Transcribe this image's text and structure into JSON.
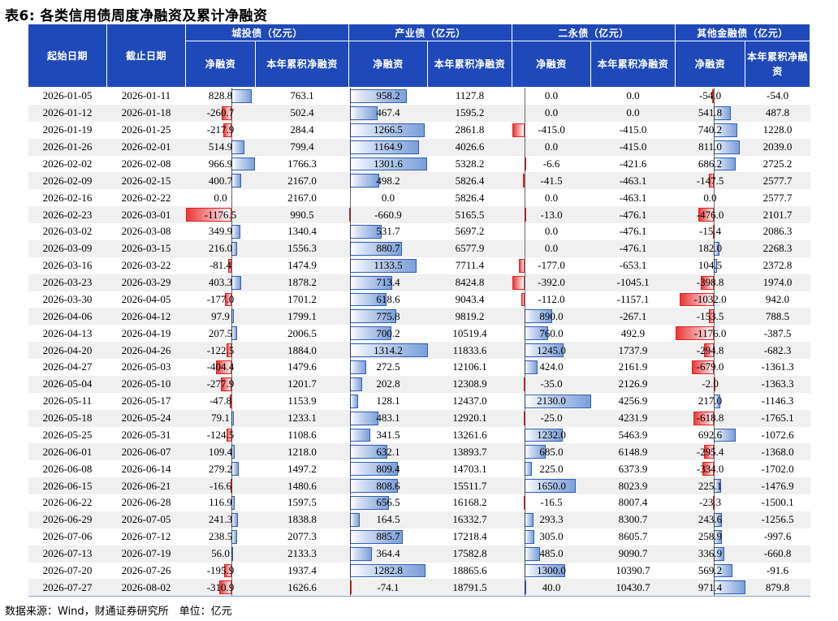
{
  "title": "表6: 各类信用债周度净融资及累计净融资",
  "headers": {
    "start_date": "起始日期",
    "end_date": "截止日期",
    "groups": [
      "城投债（亿元）",
      "产业债（亿元）",
      "二永债（亿元）",
      "其他金融债（亿元）"
    ],
    "net": "净融资",
    "cum": "本年累积净融资"
  },
  "rows": [
    {
      "start": "2026-01-05",
      "end": "2026-01-11",
      "v": [
        "828.8",
        "763.1",
        "958.2",
        "1127.8",
        "0.0",
        "0.0",
        "-54.0",
        "-54.0"
      ]
    },
    {
      "start": "2026-01-12",
      "end": "2026-01-18",
      "v": [
        "-260.7",
        "502.4",
        "467.4",
        "1595.2",
        "0.0",
        "0.0",
        "541.8",
        "487.8"
      ]
    },
    {
      "start": "2026-01-19",
      "end": "2026-01-25",
      "v": [
        "-217.9",
        "284.4",
        "1266.5",
        "2861.8",
        "-415.0",
        "-415.0",
        "740.2",
        "1228.0"
      ]
    },
    {
      "start": "2026-01-26",
      "end": "2026-02-01",
      "v": [
        "514.9",
        "799.4",
        "1164.9",
        "4026.6",
        "0.0",
        "-415.0",
        "811.0",
        "2039.0"
      ]
    },
    {
      "start": "2026-02-02",
      "end": "2026-02-08",
      "v": [
        "966.9",
        "1766.3",
        "1301.6",
        "5328.2",
        "-6.6",
        "-421.6",
        "686.2",
        "2725.2"
      ]
    },
    {
      "start": "2026-02-09",
      "end": "2026-02-15",
      "v": [
        "400.7",
        "2167.0",
        "498.2",
        "5826.4",
        "-41.5",
        "-463.1",
        "-147.5",
        "2577.7"
      ]
    },
    {
      "start": "2026-02-16",
      "end": "2026-02-22",
      "v": [
        "0.0",
        "2167.0",
        "0.0",
        "5826.4",
        "0.0",
        "-463.1",
        "0.0",
        "2577.7"
      ]
    },
    {
      "start": "2026-02-23",
      "end": "2026-03-01",
      "v": [
        "-1176.5",
        "990.5",
        "-660.9",
        "5165.5",
        "-13.0",
        "-476.1",
        "-476.0",
        "2101.7"
      ]
    },
    {
      "start": "2026-03-02",
      "end": "2026-03-08",
      "v": [
        "349.9",
        "1340.4",
        "531.7",
        "5697.2",
        "0.0",
        "-476.1",
        "-15.4",
        "2086.3"
      ]
    },
    {
      "start": "2026-03-09",
      "end": "2026-03-15",
      "v": [
        "216.0",
        "1556.3",
        "880.7",
        "6577.9",
        "0.0",
        "-476.1",
        "182.0",
        "2268.3"
      ]
    },
    {
      "start": "2026-03-16",
      "end": "2026-03-22",
      "v": [
        "-81.4",
        "1474.9",
        "1133.5",
        "7711.4",
        "-177.0",
        "-653.1",
        "104.5",
        "2372.8"
      ]
    },
    {
      "start": "2026-03-23",
      "end": "2026-03-29",
      "v": [
        "403.3",
        "1878.2",
        "713.4",
        "8424.8",
        "-392.0",
        "-1045.1",
        "-398.8",
        "1974.0"
      ]
    },
    {
      "start": "2026-03-30",
      "end": "2026-04-05",
      "v": [
        "-177.0",
        "1701.2",
        "618.6",
        "9043.4",
        "-112.0",
        "-1157.1",
        "-1032.0",
        "942.0"
      ]
    },
    {
      "start": "2026-04-06",
      "end": "2026-04-12",
      "v": [
        "97.9",
        "1799.1",
        "775.8",
        "9819.2",
        "890.0",
        "-267.1",
        "-153.5",
        "788.5"
      ]
    },
    {
      "start": "2026-04-13",
      "end": "2026-04-19",
      "v": [
        "207.5",
        "2006.5",
        "700.2",
        "10519.4",
        "760.0",
        "492.9",
        "-1176.0",
        "-387.5"
      ]
    },
    {
      "start": "2026-04-20",
      "end": "2026-04-26",
      "v": [
        "-122.5",
        "1884.0",
        "1314.2",
        "11833.6",
        "1245.0",
        "1737.9",
        "-294.8",
        "-682.3"
      ]
    },
    {
      "start": "2026-04-27",
      "end": "2026-05-03",
      "v": [
        "-404.4",
        "1479.6",
        "272.5",
        "12106.1",
        "424.0",
        "2161.9",
        "-679.0",
        "-1361.3"
      ]
    },
    {
      "start": "2026-05-04",
      "end": "2026-05-10",
      "v": [
        "-277.9",
        "1201.7",
        "202.8",
        "12308.9",
        "-35.0",
        "2126.9",
        "-2.0",
        "-1363.3"
      ]
    },
    {
      "start": "2026-05-11",
      "end": "2026-05-17",
      "v": [
        "-47.8",
        "1153.9",
        "128.1",
        "12437.0",
        "2130.0",
        "4256.9",
        "217.0",
        "-1146.3"
      ]
    },
    {
      "start": "2026-05-18",
      "end": "2026-05-24",
      "v": [
        "79.1",
        "1233.1",
        "483.1",
        "12920.1",
        "-25.0",
        "4231.9",
        "-618.8",
        "-1765.1"
      ]
    },
    {
      "start": "2026-05-25",
      "end": "2026-05-31",
      "v": [
        "-124.5",
        "1108.6",
        "341.5",
        "13261.6",
        "1232.0",
        "5463.9",
        "692.6",
        "-1072.6"
      ]
    },
    {
      "start": "2026-06-01",
      "end": "2026-06-07",
      "v": [
        "109.4",
        "1218.0",
        "632.1",
        "13893.7",
        "685.0",
        "6148.9",
        "-295.4",
        "-1368.0"
      ]
    },
    {
      "start": "2026-06-08",
      "end": "2026-06-14",
      "v": [
        "279.2",
        "1497.2",
        "809.4",
        "14703.1",
        "225.0",
        "6373.9",
        "-334.0",
        "-1702.0"
      ]
    },
    {
      "start": "2026-06-15",
      "end": "2026-06-21",
      "v": [
        "-16.6",
        "1480.6",
        "808.6",
        "15511.7",
        "1650.0",
        "8023.9",
        "225.1",
        "-1476.9"
      ]
    },
    {
      "start": "2026-06-22",
      "end": "2026-06-28",
      "v": [
        "116.9",
        "1597.5",
        "656.5",
        "16168.2",
        "-16.5",
        "8007.4",
        "-23.3",
        "-1500.1"
      ]
    },
    {
      "start": "2026-06-29",
      "end": "2026-07-05",
      "v": [
        "241.3",
        "1838.8",
        "164.5",
        "16332.7",
        "293.3",
        "8300.7",
        "243.6",
        "-1256.5"
      ]
    },
    {
      "start": "2026-07-06",
      "end": "2026-07-12",
      "v": [
        "238.5",
        "2077.3",
        "885.7",
        "17218.4",
        "305.0",
        "8605.7",
        "258.9",
        "-997.6"
      ]
    },
    {
      "start": "2026-07-13",
      "end": "2026-07-19",
      "v": [
        "56.0",
        "2133.3",
        "364.4",
        "17582.8",
        "485.0",
        "9090.7",
        "336.9",
        "-660.8"
      ]
    },
    {
      "start": "2026-07-20",
      "end": "2026-07-26",
      "v": [
        "-195.9",
        "1937.4",
        "1282.8",
        "18865.6",
        "1300.0",
        "10390.7",
        "569.2",
        "-91.6"
      ]
    },
    {
      "start": "2026-07-27",
      "end": "2026-08-02",
      "v": [
        "-310.9",
        "1626.6",
        "-74.1",
        "18791.5",
        "40.0",
        "10430.7",
        "971.4",
        "879.8"
      ]
    }
  ],
  "colors": {
    "header_bg": "#1f49b8",
    "positive_bar": "#4a78c8",
    "negative_bar": "#ea2a2a"
  },
  "footer": "数据来源：Wind，财通证券研究所　单位：亿元"
}
